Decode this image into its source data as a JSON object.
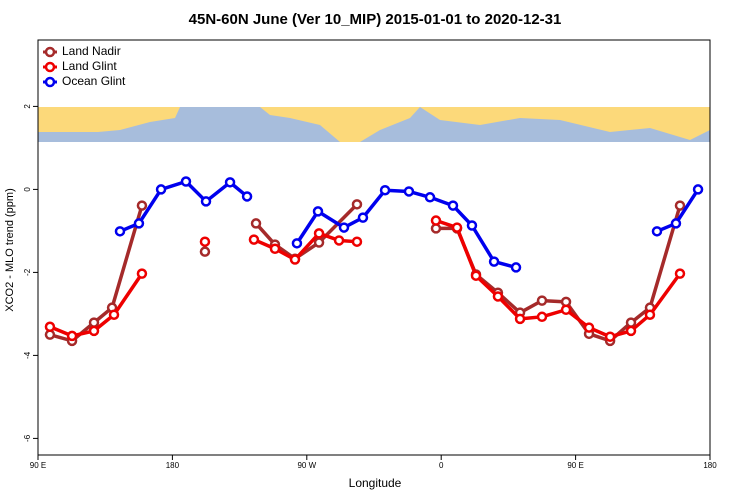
{
  "chart_data": {
    "type": "line",
    "title": "45N-60N June (Ver 10_MIP)   2015-01-01 to 2020-12-31",
    "x_label": "Longitude",
    "y_label": "XCO2 - MLO trend (ppm)",
    "xlim": [
      90,
      540
    ],
    "xticks": [
      {
        "value": 90,
        "label": "90 E"
      },
      180,
      {
        "value": 270,
        "label": "90 W"
      },
      {
        "value": 360,
        "label": "0"
      },
      {
        "value": 450,
        "label": "90 E"
      },
      {
        "value": 540,
        "label": "180"
      }
    ],
    "ylim": [
      -6.4,
      3.6
    ],
    "yticks": [
      2,
      0,
      -2,
      -4,
      -6
    ],
    "legend": "top-left",
    "series": [
      {
        "name": "Land Nadir",
        "color": "#a52a2a",
        "x": [
          98.0,
          112.8,
          127.5,
          139.6,
          159.6,
          null,
          201.8,
          null,
          236.0,
          248.7,
          262.1,
          278.2,
          303.6,
          null,
          356.5,
          370.6,
          383.3,
          398.0,
          412.8,
          427.5,
          443.6,
          459.0,
          473.1,
          487.1,
          499.8,
          519.9
        ],
        "values": [
          -3.5,
          -3.65,
          -3.21,
          -2.85,
          -0.39,
          null,
          -1.5,
          null,
          -0.82,
          -1.33,
          -1.67,
          -1.28,
          -0.36,
          null,
          -0.94,
          -0.94,
          -2.05,
          -2.49,
          -2.97,
          -2.68,
          -2.71,
          -3.48,
          -3.65,
          -3.21,
          -2.85,
          -0.39
        ]
      },
      {
        "name": "Land Glint",
        "color": "#ee0000",
        "x": [
          98.0,
          112.8,
          127.5,
          140.9,
          159.6,
          null,
          201.8,
          null,
          234.6,
          248.7,
          262.1,
          278.2,
          291.6,
          303.6,
          null,
          356.5,
          370.6,
          383.3,
          398.0,
          412.8,
          427.5,
          443.6,
          459.0,
          473.1,
          487.1,
          499.8,
          519.9
        ],
        "values": [
          -3.31,
          -3.53,
          -3.41,
          -3.02,
          -2.03,
          null,
          -1.26,
          null,
          -1.21,
          -1.43,
          -1.69,
          -1.06,
          -1.23,
          -1.26,
          null,
          -0.75,
          -0.92,
          -2.08,
          -2.58,
          -3.12,
          -3.07,
          -2.9,
          -3.33,
          -3.55,
          -3.41,
          -3.02,
          -2.03
        ]
      },
      {
        "name": "Ocean Glint",
        "color": "#0000ee",
        "x": [
          144.9,
          157.6,
          172.4,
          189.1,
          202.5,
          218.6,
          230.0,
          null,
          263.4,
          277.5,
          294.9,
          307.6,
          322.4,
          338.4,
          352.5,
          367.9,
          380.6,
          395.4,
          410.1,
          null,
          504.5,
          517.2,
          532.0
        ],
        "values": [
          -1.01,
          -0.82,
          0,
          0.19,
          -0.29,
          0.17,
          -0.17,
          null,
          -1.3,
          -0.53,
          -0.92,
          -0.68,
          -0.02,
          -0.05,
          -0.19,
          -0.39,
          -0.87,
          -1.74,
          -1.88,
          null,
          -1.01,
          -0.82,
          0
        ]
      }
    ]
  }
}
